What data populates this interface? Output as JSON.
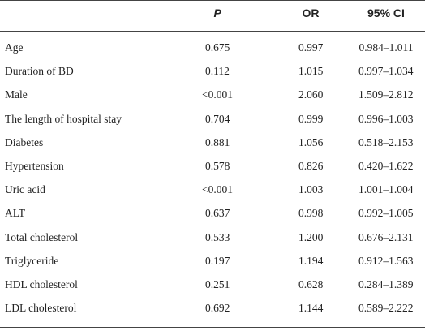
{
  "table": {
    "header": [
      "P",
      "OR",
      "95% CI"
    ],
    "rows": [
      [
        "Age",
        "0.675",
        "0.997",
        "0.984–1.011"
      ],
      [
        "Duration of BD",
        "0.112",
        "1.015",
        "0.997–1.034"
      ],
      [
        "Male",
        "<0.001",
        "2.060",
        "1.509–2.812"
      ],
      [
        "The length of hospital stay",
        "0.704",
        "0.999",
        "0.996–1.003"
      ],
      [
        "Diabetes",
        "0.881",
        "1.056",
        "0.518–2.153"
      ],
      [
        "Hypertension",
        "0.578",
        "0.826",
        "0.420–1.622"
      ],
      [
        "Uric acid",
        "<0.001",
        "1.003",
        "1.001–1.004"
      ],
      [
        "ALT",
        "0.637",
        "0.998",
        "0.992–1.005"
      ],
      [
        "Total cholesterol",
        "0.533",
        "1.200",
        "0.676–2.131"
      ],
      [
        "Triglyceride",
        "0.197",
        "1.194",
        "0.912–1.563"
      ],
      [
        "HDL cholesterol",
        "0.251",
        "0.628",
        "0.284–1.389"
      ],
      [
        "LDL cholesterol",
        "0.692",
        "1.144",
        "0.589–2.222"
      ]
    ]
  }
}
